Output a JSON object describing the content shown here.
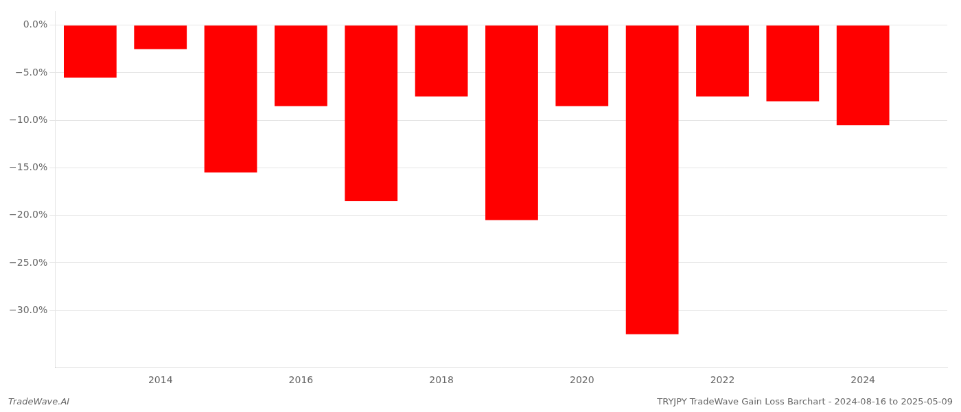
{
  "chart_data": {
    "type": "bar",
    "x": [
      2013,
      2014,
      2015,
      2016,
      2017,
      2018,
      2019,
      2020,
      2021,
      2022,
      2023,
      2024
    ],
    "values": [
      -5.5,
      -2.5,
      -15.5,
      -8.5,
      -18.5,
      -7.5,
      -20.5,
      -8.5,
      -32.5,
      -7.5,
      -8.0,
      -10.5
    ],
    "color": "#ff0000",
    "xlim": [
      2012.5,
      2025.2
    ],
    "xticks": [
      2014,
      2016,
      2018,
      2020,
      2022,
      2024
    ],
    "ylim": [
      -36,
      1.5
    ],
    "yticks": [
      {
        "value": 0.0,
        "label": "0.0%"
      },
      {
        "value": -5.0,
        "label": "−5.0%"
      },
      {
        "value": -10.0,
        "label": "−10.0%"
      },
      {
        "value": -15.0,
        "label": "−15.0%"
      },
      {
        "value": -20.0,
        "label": "−20.0%"
      },
      {
        "value": -25.0,
        "label": "−25.0%"
      },
      {
        "value": -30.0,
        "label": "−30.0%"
      }
    ],
    "grid": "y",
    "annotations": [
      "TradeWave.AI",
      "TRYJPY TradeWave Gain Loss Barchart - 2024-08-16 to 2025-05-09"
    ]
  }
}
